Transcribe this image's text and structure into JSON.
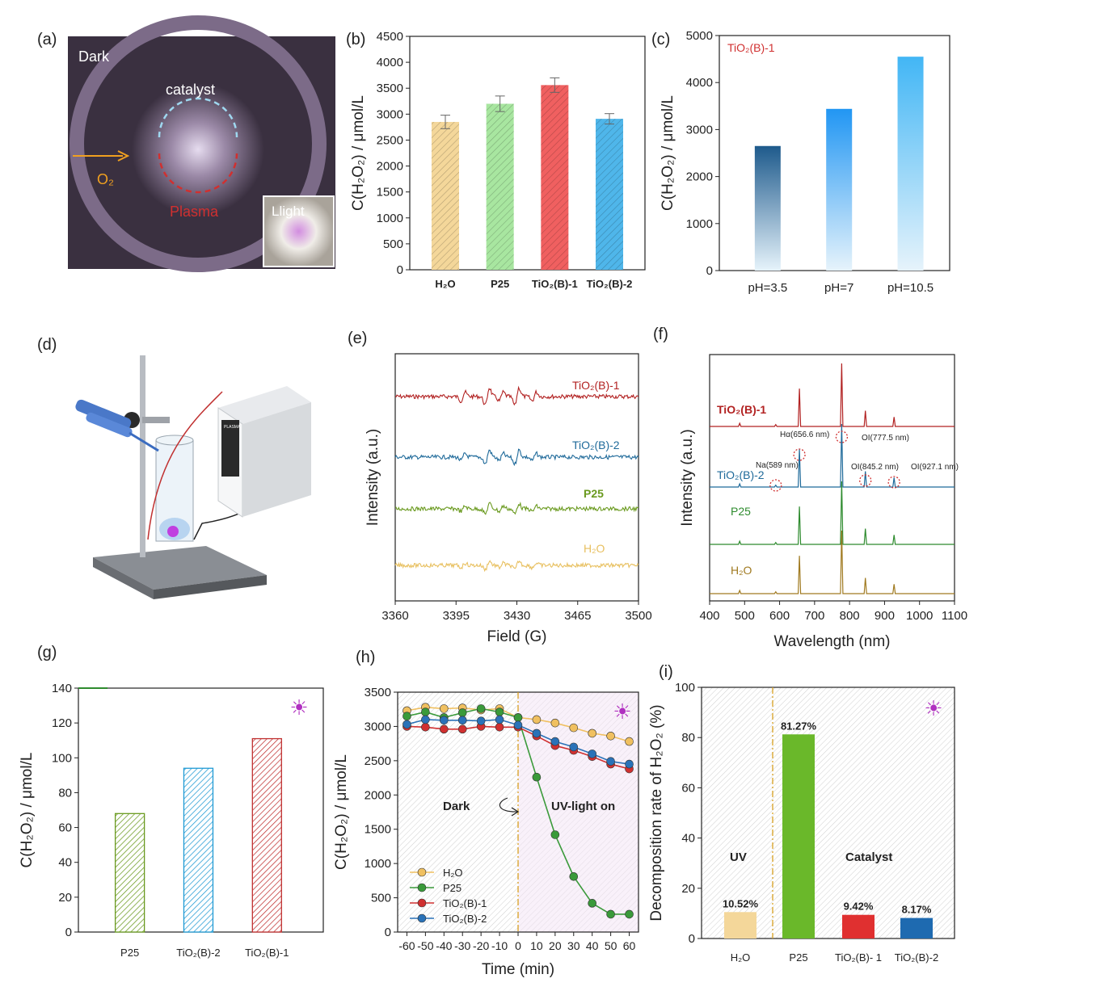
{
  "panels": [
    {
      "id": "a",
      "label": "(a)",
      "type": "photo",
      "annotations": {
        "dark": "Dark",
        "catalyst": "catalyst",
        "o2": "O₂",
        "plasma": "Plasma",
        "inset": "Llight"
      },
      "colors": {
        "background": "#3a3040",
        "o2_arrow": "#f0a020",
        "plasma": "#d03030",
        "catalyst_ring": "#9fd8f0"
      }
    },
    {
      "id": "b",
      "label": "(b)",
      "chart_data": {
        "type": "bar",
        "categories": [
          "H₂O",
          "P25",
          "TiO₂(B)-1",
          "TiO₂(B)-2"
        ],
        "values": [
          2850,
          3200,
          3560,
          2910
        ],
        "errors": [
          130,
          150,
          140,
          100
        ],
        "ylabel": "C(H₂O₂) / μmol/L",
        "ylim": [
          0,
          4500
        ],
        "yticks": [
          0,
          500,
          1000,
          1500,
          2000,
          2500,
          3000,
          3500,
          4000,
          4500
        ],
        "colors": [
          "#f4d79a",
          "#a8e6a0",
          "#f06060",
          "#4fb6ea"
        ],
        "hatch": true
      }
    },
    {
      "id": "c",
      "label": "(c)",
      "chart_data": {
        "type": "bar",
        "categories": [
          "pH=3.5",
          "pH=7",
          "pH=10.5"
        ],
        "values": [
          2650,
          3440,
          4550
        ],
        "ylabel": "C(H₂O₂) / μmol/L",
        "ylim": [
          0,
          5000
        ],
        "yticks": [
          0,
          1000,
          2000,
          3000,
          4000,
          5000
        ],
        "annotation": "TiO₂(B)-1",
        "colors": [
          "#1e5a8c",
          "#2196f3",
          "#42b6f5"
        ],
        "gradient": true
      }
    },
    {
      "id": "d",
      "label": "(d)",
      "type": "illustration",
      "annotations": {
        "device": "PLASMA"
      }
    },
    {
      "id": "e",
      "label": "(e)",
      "chart_data": {
        "type": "line",
        "xlabel": "Field (G)",
        "ylabel": "Intensity (a.u.)",
        "xlim": [
          3360,
          3500
        ],
        "xticks": [
          3360,
          3395,
          3430,
          3465,
          3500
        ],
        "series": [
          {
            "name": "TiO₂(B)-1",
            "color": "#b22222",
            "offset": 3,
            "amp": 1.0
          },
          {
            "name": "TiO₂(B)-2",
            "color": "#1f6a9a",
            "offset": 2,
            "amp": 0.8
          },
          {
            "name": "P25",
            "color": "#6a9a1f",
            "offset": 1,
            "amp": 0.6
          },
          {
            "name": "H₂O",
            "color": "#e8c060",
            "offset": 0,
            "amp": 0.5
          }
        ],
        "peaks": [
          3399,
          3413,
          3421,
          3430,
          3440
        ]
      }
    },
    {
      "id": "f",
      "label": "(f)",
      "chart_data": {
        "type": "line",
        "xlabel": "Wavelength (nm)",
        "ylabel": "Intensity (a.u.)",
        "xlim": [
          400,
          1100
        ],
        "xticks": [
          400,
          500,
          600,
          700,
          800,
          900,
          1000,
          1100
        ],
        "series": [
          {
            "name": "TiO₂(B)-1",
            "color": "#b22222",
            "offset": 3
          },
          {
            "name": "TiO₂(B)-2",
            "color": "#1f6a9a",
            "offset": 2
          },
          {
            "name": "P25",
            "color": "#2e8b2e",
            "offset": 1
          },
          {
            "name": "H₂O",
            "color": "#a07a20",
            "offset": 0
          }
        ],
        "lines": [
          {
            "x": 486,
            "h": 0.05
          },
          {
            "x": 589,
            "h": 0.03
          },
          {
            "x": 656.6,
            "h": 0.6
          },
          {
            "x": 777.5,
            "h": 1.0
          },
          {
            "x": 845.2,
            "h": 0.25
          },
          {
            "x": 927.1,
            "h": 0.15
          }
        ],
        "annotations": [
          "Hα(656.6 nm)",
          "OI(777.5 nm)",
          "Na(589 nm)",
          "OI(845.2 nm)",
          "OI(927.1 nm)"
        ]
      }
    },
    {
      "id": "g",
      "label": "(g)",
      "chart_data": {
        "type": "bar",
        "categories": [
          "P25",
          "TiO₂(B)-2",
          "TiO₂(B)-1"
        ],
        "values": [
          68,
          94,
          111
        ],
        "ylabel": "C(H₂O₂) / μmol/L",
        "ylim": [
          0,
          140
        ],
        "yticks": [
          0,
          20,
          40,
          60,
          80,
          100,
          120,
          140
        ],
        "colors": [
          "#6a9a1f",
          "#1f9ad4",
          "#c03030"
        ],
        "hatch": true
      }
    },
    {
      "id": "h",
      "label": "(h)",
      "chart_data": {
        "type": "line",
        "xlabel": "Time (min)",
        "ylabel": "C(H₂O₂) / μmol/L",
        "xlim": [
          -65,
          65
        ],
        "ylim": [
          0,
          3500
        ],
        "xticks": [
          -60,
          -50,
          -40,
          -30,
          -20,
          -10,
          0,
          10,
          20,
          30,
          40,
          50,
          60
        ],
        "yticks": [
          0,
          500,
          1000,
          1500,
          2000,
          2500,
          3000,
          3500
        ],
        "x": [
          -60,
          -50,
          -40,
          -30,
          -20,
          -10,
          0,
          10,
          20,
          30,
          40,
          50,
          60
        ],
        "series": [
          {
            "name": "H₂O",
            "color": "#f0c060",
            "values": [
              3230,
              3280,
              3260,
              3270,
              3240,
              3260,
              3130,
              3100,
              3050,
              2980,
              2900,
              2860,
              2780
            ]
          },
          {
            "name": "P25",
            "color": "#3a9a3a",
            "values": [
              3150,
              3210,
              3130,
              3200,
              3260,
              3210,
              3130,
              2260,
              1420,
              810,
              420,
              260,
              260
            ]
          },
          {
            "name": "TiO₂(B)-1",
            "color": "#d03030",
            "values": [
              3000,
              2990,
              2960,
              2960,
              3000,
              2990,
              2990,
              2860,
              2720,
              2650,
              2560,
              2450,
              2380
            ]
          },
          {
            "name": "TiO₂(B)-2",
            "color": "#2a72b8",
            "values": [
              3030,
              3100,
              3090,
              3090,
              3080,
              3100,
              3020,
              2900,
              2780,
              2700,
              2600,
              2490,
              2450
            ]
          }
        ],
        "annotations": {
          "dark": "Dark",
          "light": "UV-light on"
        }
      }
    },
    {
      "id": "i",
      "label": "(i)",
      "chart_data": {
        "type": "bar",
        "categories": [
          "H₂O",
          "P25",
          "TiO₂(B)- 1",
          "TiO₂(B)-2"
        ],
        "values": [
          10.52,
          81.27,
          9.42,
          8.17
        ],
        "value_labels": [
          "10.52%",
          "81.27%",
          "9.42%",
          "8.17%"
        ],
        "ylabel": "Decomposition rate of H₂O₂ (%)",
        "ylim": [
          0,
          100
        ],
        "yticks": [
          0,
          20,
          40,
          60,
          80,
          100
        ],
        "colors": [
          "#f4d79a",
          "#6ab82a",
          "#e03030",
          "#1e6ab0"
        ],
        "annotations": {
          "uv": "UV",
          "catalyst": "Catalyst"
        }
      }
    }
  ]
}
